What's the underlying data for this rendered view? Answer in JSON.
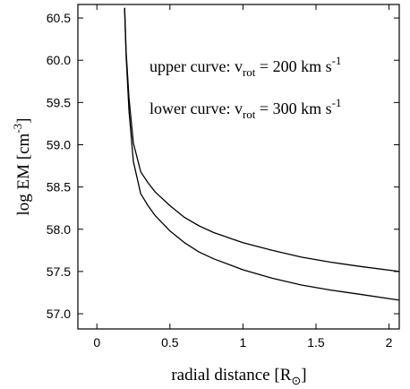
{
  "chart_data": {
    "type": "line",
    "xlabel": "radial distance",
    "xlabel_unit": "R",
    "xlabel_unit_sub": "⊙",
    "ylabel": "log EM",
    "ylabel_unit": "cm",
    "ylabel_unit_sup": "-3",
    "xlim": [
      -0.13,
      2.07
    ],
    "ylim": [
      56.82,
      60.66
    ],
    "xticks": [
      0,
      0.5,
      1,
      1.5,
      2
    ],
    "xtick_labels": [
      "0",
      "0.5",
      "1",
      "1.5",
      "2"
    ],
    "yticks": [
      57.0,
      57.5,
      58.0,
      58.5,
      59.0,
      59.5,
      60.0,
      60.5
    ],
    "ytick_labels": [
      "57.0",
      "57.5",
      "58.0",
      "58.5",
      "59.0",
      "59.5",
      "60.0",
      "60.5"
    ],
    "grid": false,
    "series": [
      {
        "label": "upper",
        "x": [
          0.19,
          0.2,
          0.22,
          0.25,
          0.3,
          0.35,
          0.4,
          0.5,
          0.6,
          0.7,
          0.8,
          1.0,
          1.2,
          1.4,
          1.6,
          1.8,
          2.07
        ],
        "y": [
          60.62,
          60.1,
          59.55,
          59.02,
          58.68,
          58.55,
          58.44,
          58.28,
          58.14,
          58.04,
          57.96,
          57.84,
          57.75,
          57.67,
          57.61,
          57.56,
          57.5
        ]
      },
      {
        "label": "lower",
        "x": [
          0.19,
          0.2,
          0.22,
          0.25,
          0.3,
          0.35,
          0.4,
          0.5,
          0.6,
          0.7,
          0.8,
          1.0,
          1.2,
          1.4,
          1.6,
          1.8,
          2.07
        ],
        "y": [
          60.62,
          60.05,
          59.4,
          58.8,
          58.42,
          58.28,
          58.16,
          57.98,
          57.84,
          57.73,
          57.65,
          57.52,
          57.42,
          57.34,
          57.28,
          57.23,
          57.16
        ]
      }
    ],
    "annotations": [
      {
        "prefix": "upper curve:  v",
        "sub": "rot",
        "mid": " = 200 km s",
        "sup": "-1"
      },
      {
        "prefix": "lower curve:  v",
        "sub": "rot",
        "mid": " = 300 km s",
        "sup": "-1"
      }
    ]
  }
}
